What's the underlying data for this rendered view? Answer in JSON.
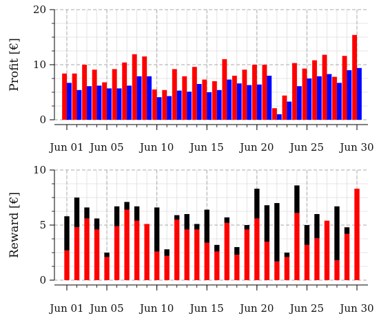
{
  "chart_data": [
    {
      "type": "bar",
      "ylabel": "Profit [€]",
      "xlabel": "",
      "ylim": [
        0,
        20
      ],
      "yticks": [
        "0",
        "10",
        "20"
      ],
      "x_tick_labels": [
        "Jun 01",
        "Jun 05",
        "Jun 10",
        "Jun 15",
        "Jun 20",
        "Jun 25",
        "Jun 30"
      ],
      "x_tick_days": [
        1,
        5,
        10,
        15,
        20,
        25,
        30
      ],
      "grid": true,
      "categories": [
        "Jun 01",
        "Jun 02",
        "Jun 03",
        "Jun 04",
        "Jun 05",
        "Jun 06",
        "Jun 07",
        "Jun 08",
        "Jun 09",
        "Jun 10",
        "Jun 11",
        "Jun 12",
        "Jun 13",
        "Jun 14",
        "Jun 15",
        "Jun 16",
        "Jun 17",
        "Jun 18",
        "Jun 19",
        "Jun 20",
        "Jun 21",
        "Jun 22",
        "Jun 23",
        "Jun 24",
        "Jun 25",
        "Jun 26",
        "Jun 27",
        "Jun 28",
        "Jun 29",
        "Jun 30"
      ],
      "series": [
        {
          "color": "#ff0000",
          "values": [
            8.4,
            8.4,
            10.0,
            9.1,
            6.8,
            9.2,
            10.4,
            11.9,
            11.5,
            5.5,
            5.4,
            9.2,
            7.9,
            9.6,
            7.3,
            7.0,
            11.0,
            8.0,
            9.1,
            10.0,
            10.0,
            2.1,
            4.4,
            10.3,
            9.3,
            10.8,
            11.8,
            7.8,
            11.6,
            15.4
          ]
        },
        {
          "color": "#0000ff",
          "values": [
            6.7,
            5.4,
            6.1,
            6.2,
            5.7,
            5.7,
            6.2,
            7.9,
            7.9,
            4.1,
            4.3,
            5.3,
            5.1,
            6.5,
            5.0,
            5.4,
            7.3,
            6.6,
            6.3,
            6.4,
            8.0,
            1.0,
            3.3,
            6.1,
            7.5,
            7.9,
            8.3,
            6.7,
            9.0,
            9.4
          ]
        }
      ]
    },
    {
      "type": "bar",
      "stacked": true,
      "ylabel": "Reward [€]",
      "xlabel": "",
      "ylim": [
        0,
        10
      ],
      "yticks": [
        "0",
        "5",
        "10"
      ],
      "x_tick_labels": [
        "Jun 01",
        "Jun 05",
        "Jun 10",
        "Jun 15",
        "Jun 20",
        "Jun 25",
        "Jun 30"
      ],
      "x_tick_days": [
        1,
        5,
        10,
        15,
        20,
        25,
        30
      ],
      "grid": true,
      "categories": [
        "Jun 01",
        "Jun 02",
        "Jun 03",
        "Jun 04",
        "Jun 05",
        "Jun 06",
        "Jun 07",
        "Jun 08",
        "Jun 09",
        "Jun 10",
        "Jun 11",
        "Jun 12",
        "Jun 13",
        "Jun 14",
        "Jun 15",
        "Jun 16",
        "Jun 17",
        "Jun 18",
        "Jun 19",
        "Jun 20",
        "Jun 21",
        "Jun 22",
        "Jun 23",
        "Jun 24",
        "Jun 25",
        "Jun 26",
        "Jun 27",
        "Jun 28",
        "Jun 29",
        "Jun 30"
      ],
      "series": [
        {
          "color": "#ff0000",
          "values": [
            2.7,
            4.8,
            5.6,
            4.6,
            2.1,
            4.9,
            6.4,
            5.4,
            5.1,
            2.6,
            2.2,
            5.5,
            4.6,
            4.6,
            3.4,
            2.6,
            5.2,
            2.3,
            4.6,
            5.6,
            3.5,
            1.7,
            2.1,
            6.1,
            3.2,
            3.8,
            5.4,
            1.8,
            4.2,
            8.3
          ]
        },
        {
          "color": "#000000",
          "values": [
            3.1,
            2.7,
            1.0,
            1.0,
            0.4,
            1.8,
            0.7,
            1.3,
            0.0,
            4.0,
            0.6,
            0.4,
            1.4,
            0.5,
            3.0,
            0.6,
            0.5,
            0.7,
            0.4,
            2.7,
            3.3,
            5.3,
            0.4,
            2.5,
            1.8,
            2.2,
            0.0,
            4.9,
            0.6,
            0.0
          ]
        }
      ]
    }
  ]
}
